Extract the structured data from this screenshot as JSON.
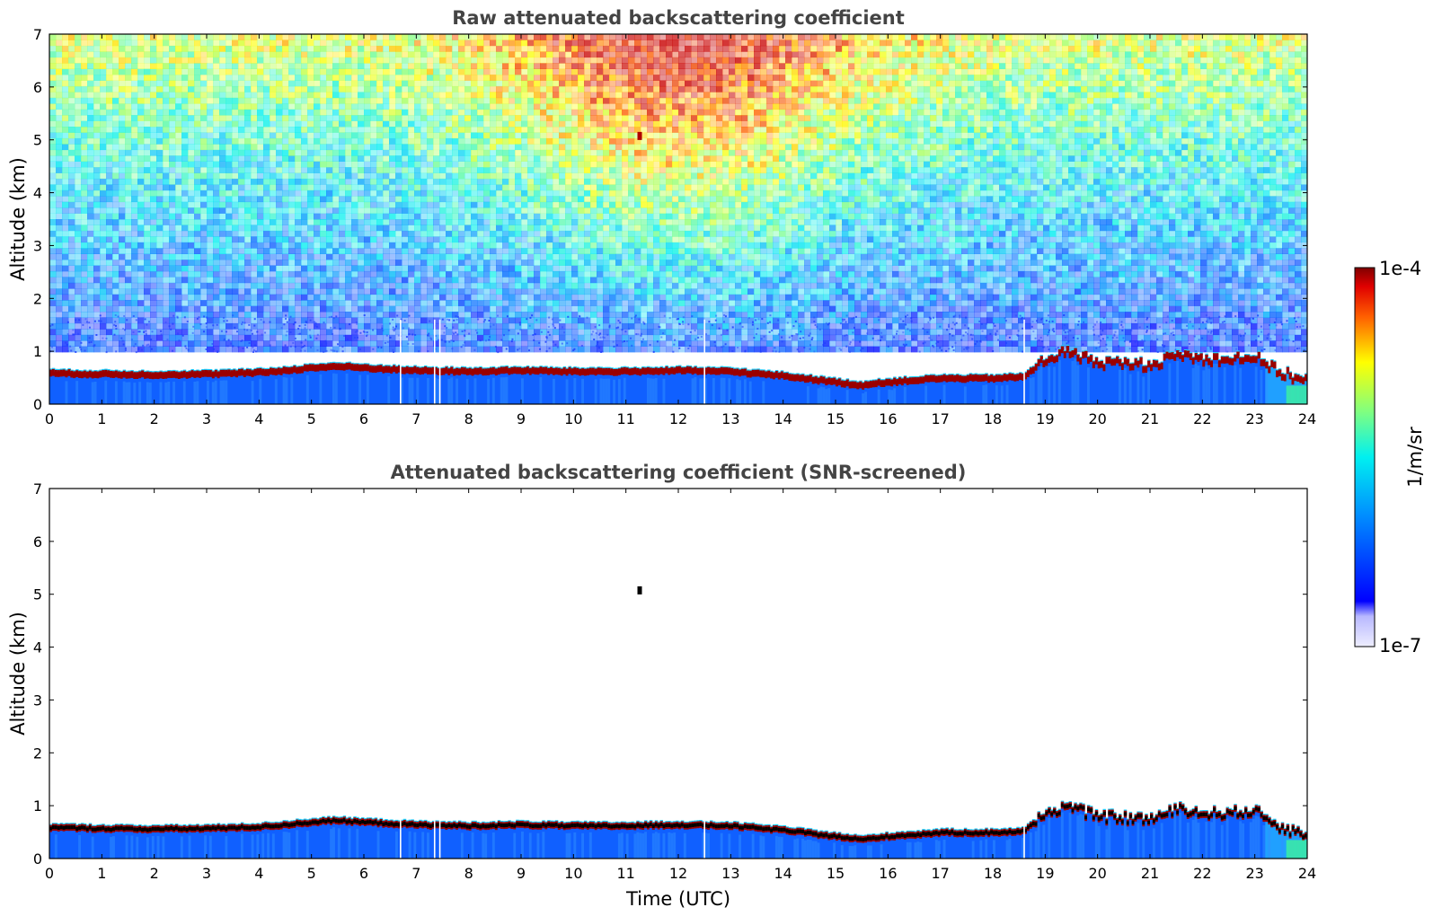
{
  "chart_data": [
    {
      "type": "heatmap",
      "title": "Raw attenuated backscattering coefficient",
      "xlabel": "",
      "ylabel": "Altitude (km)",
      "xlim": [
        0,
        24
      ],
      "ylim": [
        0,
        7
      ],
      "x_ticks": [
        "0",
        "1",
        "2",
        "3",
        "4",
        "5",
        "6",
        "7",
        "8",
        "9",
        "10",
        "11",
        "12",
        "13",
        "14",
        "15",
        "16",
        "17",
        "18",
        "19",
        "20",
        "21",
        "22",
        "23",
        "24"
      ],
      "y_ticks": [
        "0",
        "1",
        "2",
        "3",
        "4",
        "5",
        "6",
        "7"
      ],
      "screened": false,
      "cloud_top_km": [
        [
          0,
          0.65
        ],
        [
          1,
          0.63
        ],
        [
          2,
          0.62
        ],
        [
          3,
          0.63
        ],
        [
          4,
          0.66
        ],
        [
          4.5,
          0.7
        ],
        [
          5,
          0.75
        ],
        [
          5.5,
          0.78
        ],
        [
          6,
          0.75
        ],
        [
          7,
          0.7
        ],
        [
          8,
          0.68
        ],
        [
          9,
          0.7
        ],
        [
          10,
          0.68
        ],
        [
          11,
          0.68
        ],
        [
          12,
          0.7
        ],
        [
          13,
          0.68
        ],
        [
          14,
          0.6
        ],
        [
          15,
          0.48
        ],
        [
          15.5,
          0.42
        ],
        [
          16,
          0.48
        ],
        [
          17,
          0.55
        ],
        [
          18,
          0.55
        ],
        [
          18.6,
          0.58
        ],
        [
          19,
          0.9
        ],
        [
          19.4,
          1.05
        ],
        [
          20,
          0.85
        ],
        [
          21,
          0.8
        ],
        [
          21.6,
          1.0
        ],
        [
          22,
          0.9
        ],
        [
          23,
          0.95
        ],
        [
          23.5,
          0.65
        ],
        [
          24,
          0.5
        ]
      ],
      "data_gaps_utc": [
        6.7,
        7.35,
        7.45,
        12.5,
        18.6
      ]
    },
    {
      "type": "heatmap",
      "title": "Attenuated backscattering coefficient (SNR-screened)",
      "xlabel": "Time (UTC)",
      "ylabel": "Altitude (km)",
      "xlim": [
        0,
        24
      ],
      "ylim": [
        0,
        7
      ],
      "x_ticks": [
        "0",
        "1",
        "2",
        "3",
        "4",
        "5",
        "6",
        "7",
        "8",
        "9",
        "10",
        "11",
        "12",
        "13",
        "14",
        "15",
        "16",
        "17",
        "18",
        "19",
        "20",
        "21",
        "22",
        "23",
        "24"
      ],
      "y_ticks": [
        "0",
        "1",
        "2",
        "3",
        "4",
        "5",
        "6",
        "7"
      ],
      "screened": true,
      "data_gaps_utc": [
        6.7,
        7.35,
        7.45,
        12.5,
        18.6
      ]
    }
  ],
  "colorbar": {
    "label": "1/m/sr",
    "max_label": "1e-4",
    "min_label": "1e-7",
    "scale": "log",
    "range": [
      1e-07,
      0.0001
    ],
    "colormap": "jet",
    "colors": [
      "#f0f0ff",
      "#c8c8ff",
      "#0000ff",
      "#0080ff",
      "#00ffff",
      "#80ff80",
      "#ffff00",
      "#ff8000",
      "#ff0000",
      "#800000"
    ]
  }
}
